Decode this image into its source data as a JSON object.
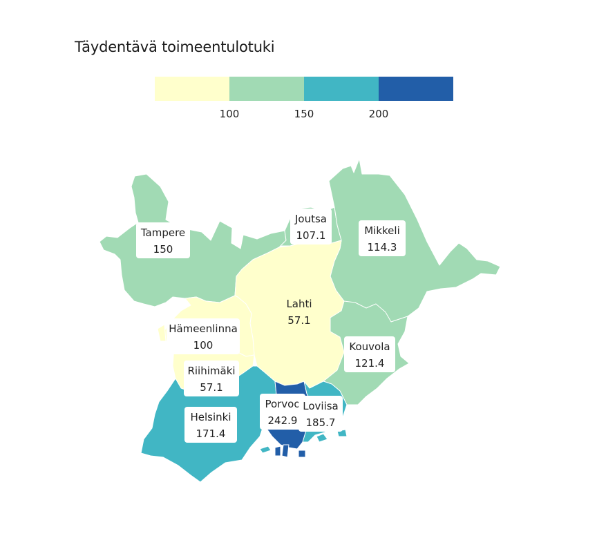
{
  "title": "Täydentävä toimeentulotuki",
  "legend": {
    "bins": [
      {
        "color": "#ffffcc"
      },
      {
        "color": "#a1dab4"
      },
      {
        "color": "#41b6c4"
      },
      {
        "color": "#225ea8"
      }
    ],
    "ticks": [
      "100",
      "150",
      "200"
    ]
  },
  "regions": [
    {
      "name": "Tampere",
      "value": "150",
      "color": "#a1dab4"
    },
    {
      "name": "Joutsa",
      "value": "107.1",
      "color": "#a1dab4"
    },
    {
      "name": "Mikkeli",
      "value": "114.3",
      "color": "#a1dab4"
    },
    {
      "name": "Lahti",
      "value": "57.1",
      "color": "#ffffcc"
    },
    {
      "name": "Hämeenlinna",
      "value": "100",
      "color": "#ffffcc"
    },
    {
      "name": "Kouvola",
      "value": "121.4",
      "color": "#a1dab4"
    },
    {
      "name": "Riihimäki",
      "value": "57.1",
      "color": "#ffffcc"
    },
    {
      "name": "Helsinki",
      "value": "171.4",
      "color": "#41b6c4"
    },
    {
      "name": "Porvoo",
      "value": "242.9",
      "color": "#225ea8"
    },
    {
      "name": "Loviisa",
      "value": "185.7",
      "color": "#41b6c4"
    }
  ]
}
